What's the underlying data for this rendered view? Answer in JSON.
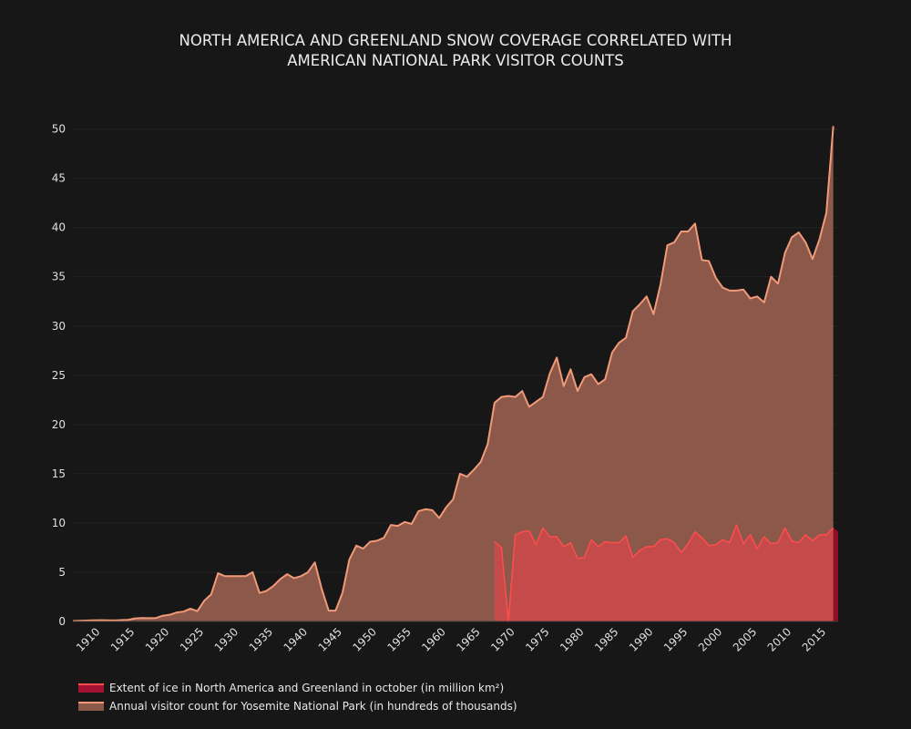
{
  "title_lines": [
    "NORTH AMERICA AND GREENLAND SNOW COVERAGE CORRELATED WITH",
    "AMERICAN NATIONAL PARK VISITOR COUNTS"
  ],
  "colors": {
    "background": "#171717",
    "grid": "#222222",
    "visitors_fill": "#8b584a",
    "visitors_line": "#f29a78",
    "ice_fill": "#c54a4a",
    "ice_line": "#ff4d4d",
    "ice_legend": "#a31232",
    "ice_tail": "#8c0f26"
  },
  "legend": [
    {
      "label": "Extent of ice in North America and Greenland in october (in million km²)",
      "series": "ice"
    },
    {
      "label": "Annual visitor count for Yosemite National Park (in hundreds of thousands)",
      "series": "visitors"
    }
  ],
  "chart_data": {
    "type": "area",
    "title": "NORTH AMERICA AND GREENLAND SNOW COVERAGE CORRELATED WITH AMERICAN NATIONAL PARK VISITOR COUNTS",
    "xlabel": "",
    "ylabel": "",
    "xlim": [
      1906,
      2016.7
    ],
    "ylim": [
      0,
      52
    ],
    "x_ticks": [
      1910,
      1915,
      1920,
      1925,
      1930,
      1935,
      1940,
      1945,
      1950,
      1955,
      1960,
      1965,
      1970,
      1975,
      1980,
      1985,
      1990,
      1995,
      2000,
      2005,
      2010,
      2015
    ],
    "y_ticks": [
      0,
      5,
      10,
      15,
      20,
      25,
      30,
      35,
      40,
      45,
      50
    ],
    "grid": true,
    "legend_position": "bottom-left",
    "series": [
      {
        "name": "Annual visitor count for Yosemite National Park (in hundreds of thousands)",
        "x": [
          1906,
          1907,
          1908,
          1909,
          1910,
          1911,
          1912,
          1913,
          1914,
          1915,
          1916,
          1917,
          1918,
          1919,
          1920,
          1921,
          1922,
          1923,
          1924,
          1925,
          1926,
          1927,
          1928,
          1929,
          1930,
          1931,
          1932,
          1933,
          1934,
          1935,
          1936,
          1937,
          1938,
          1939,
          1940,
          1941,
          1942,
          1943,
          1944,
          1945,
          1946,
          1947,
          1948,
          1949,
          1950,
          1951,
          1952,
          1953,
          1954,
          1955,
          1956,
          1957,
          1958,
          1959,
          1960,
          1961,
          1962,
          1963,
          1964,
          1965,
          1966,
          1967,
          1968,
          1969,
          1970,
          1971,
          1972,
          1973,
          1974,
          1975,
          1976,
          1977,
          1978,
          1979,
          1980,
          1981,
          1982,
          1983,
          1984,
          1985,
          1986,
          1987,
          1988,
          1989,
          1990,
          1991,
          1992,
          1993,
          1994,
          1995,
          1996,
          1997,
          1998,
          1999,
          2000,
          2001,
          2002,
          2003,
          2004,
          2005,
          2006,
          2007,
          2008,
          2009,
          2010,
          2011,
          2012,
          2013,
          2014,
          2015,
          2016
        ],
        "values": [
          0.05,
          0.07,
          0.09,
          0.11,
          0.13,
          0.12,
          0.1,
          0.14,
          0.16,
          0.31,
          0.35,
          0.33,
          0.35,
          0.58,
          0.68,
          0.91,
          1.0,
          1.3,
          1.05,
          2.1,
          2.75,
          4.9,
          4.6,
          4.6,
          4.6,
          4.6,
          5.0,
          2.9,
          3.1,
          3.6,
          4.3,
          4.8,
          4.4,
          4.6,
          5.0,
          6.0,
          3.3,
          1.1,
          1.1,
          2.9,
          6.3,
          7.7,
          7.4,
          8.1,
          8.2,
          8.5,
          9.8,
          9.7,
          10.1,
          9.9,
          11.2,
          11.4,
          11.3,
          10.5,
          11.6,
          12.4,
          15.0,
          14.7,
          15.4,
          16.2,
          18.0,
          22.2,
          22.8,
          22.9,
          22.8,
          23.4,
          21.8,
          22.3,
          22.8,
          25.2,
          26.8,
          23.9,
          25.6,
          23.4,
          24.8,
          25.1,
          24.1,
          24.6,
          27.3,
          28.3,
          28.8,
          31.5,
          32.2,
          33.0,
          31.2,
          34.2,
          38.2,
          38.5,
          39.6,
          39.6,
          40.4,
          36.7,
          36.6,
          34.9,
          33.9,
          33.6,
          33.6,
          33.7,
          32.8,
          33.0,
          32.4,
          35.0,
          34.3,
          37.4,
          39.0,
          39.5,
          38.5,
          36.8,
          38.8,
          41.5,
          50.3
        ]
      },
      {
        "name": "Extent of ice in North America and Greenland in october (in million km²)",
        "x": [
          1967,
          1968,
          1969,
          1970,
          1971,
          1972,
          1973,
          1974,
          1975,
          1976,
          1977,
          1978,
          1979,
          1980,
          1981,
          1982,
          1983,
          1984,
          1985,
          1986,
          1987,
          1988,
          1989,
          1990,
          1991,
          1992,
          1993,
          1994,
          1995,
          1996,
          1997,
          1998,
          1999,
          2000,
          2001,
          2002,
          2003,
          2004,
          2005,
          2006,
          2007,
          2008,
          2009,
          2010,
          2011,
          2012,
          2013,
          2014,
          2015,
          2016
        ],
        "values": [
          8.1,
          7.5,
          0.0,
          8.8,
          9.1,
          9.2,
          7.8,
          9.5,
          8.6,
          8.6,
          7.6,
          8.0,
          6.4,
          6.5,
          8.3,
          7.6,
          8.1,
          8.0,
          8.0,
          8.7,
          6.5,
          7.2,
          7.6,
          7.6,
          8.3,
          8.4,
          8.0,
          7.0,
          7.9,
          9.1,
          8.5,
          7.7,
          7.8,
          8.3,
          8.0,
          9.8,
          7.9,
          8.8,
          7.4,
          8.6,
          7.9,
          8.0,
          9.5,
          8.2,
          8.0,
          8.8,
          8.2,
          8.8,
          8.8,
          9.5
        ]
      }
    ]
  }
}
